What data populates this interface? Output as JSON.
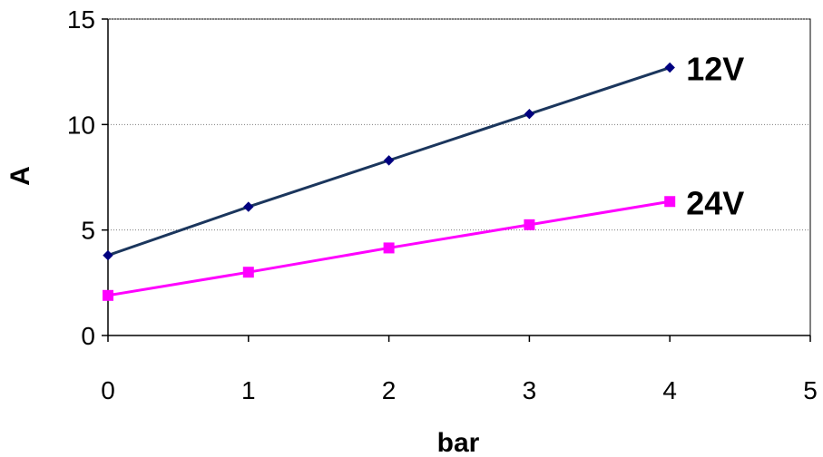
{
  "chart_data": {
    "type": "line",
    "title": "",
    "xlabel": "bar",
    "ylabel": "A",
    "xlim": [
      0,
      5
    ],
    "ylim": [
      0,
      15
    ],
    "x_ticks": [
      0,
      1,
      2,
      3,
      4,
      5
    ],
    "y_ticks": [
      0,
      5,
      10,
      15
    ],
    "x_tick_labels": [
      "0",
      "1",
      "2",
      "3",
      "4",
      "5"
    ],
    "y_tick_labels": [
      "0",
      "5",
      "10",
      "15"
    ],
    "grid": "horizontal dotted",
    "legend": "none (series labels at line ends)",
    "series": [
      {
        "name": "12V",
        "x": [
          0,
          1,
          2,
          3,
          4
        ],
        "values": [
          3.8,
          6.1,
          8.3,
          10.5,
          12.7
        ],
        "color": "#1b365d",
        "marker": "diamond"
      },
      {
        "name": "24V",
        "x": [
          0,
          1,
          2,
          3,
          4
        ],
        "values": [
          1.9,
          3.0,
          4.15,
          5.25,
          6.35
        ],
        "color": "#ff00ff",
        "marker": "square"
      }
    ]
  }
}
